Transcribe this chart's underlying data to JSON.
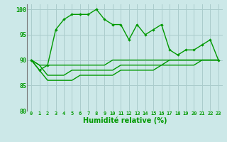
{
  "xlabel": "Humidité relative (%)",
  "xlim": [
    -0.5,
    23.5
  ],
  "ylim": [
    80,
    101
  ],
  "yticks": [
    80,
    85,
    90,
    95,
    100
  ],
  "bg_color": "#cce8e8",
  "grid_color": "#aacccc",
  "line_color": "#009900",
  "spine_color": "#777777",
  "line1": [
    90,
    88,
    89,
    96,
    98,
    99,
    99,
    99,
    100,
    98,
    97,
    97,
    94,
    97,
    95,
    96,
    97,
    92,
    91,
    92,
    92,
    93,
    94,
    90
  ],
  "line2": [
    90,
    89,
    89,
    89,
    89,
    89,
    89,
    89,
    89,
    89,
    90,
    90,
    90,
    90,
    90,
    90,
    90,
    90,
    90,
    90,
    90,
    90,
    90,
    90
  ],
  "line3": [
    90,
    89,
    87,
    87,
    87,
    88,
    88,
    88,
    88,
    88,
    88,
    89,
    89,
    89,
    89,
    89,
    89,
    90,
    90,
    90,
    90,
    90,
    90,
    90
  ],
  "line4": [
    90,
    88,
    86,
    86,
    86,
    86,
    87,
    87,
    87,
    87,
    87,
    88,
    88,
    88,
    88,
    88,
    89,
    89,
    89,
    89,
    89,
    90,
    90,
    90
  ],
  "xlabel_fontsize": 7,
  "ytick_fontsize": 6,
  "xtick_fontsize": 5
}
